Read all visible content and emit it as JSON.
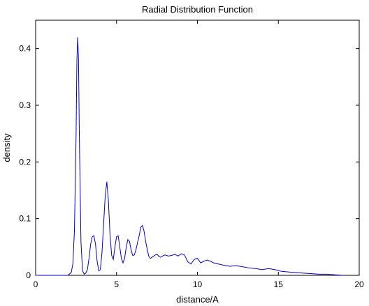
{
  "chart_data": {
    "type": "line",
    "title": "Radial Distribution Function",
    "xlabel": "distance/A",
    "ylabel": "density",
    "xlim": [
      0,
      20
    ],
    "ylim": [
      0,
      0.45
    ],
    "xticks": [
      0,
      5,
      10,
      15,
      20
    ],
    "xtick_labels": [
      "0",
      "5",
      "10",
      "15",
      "20"
    ],
    "yticks": [
      0,
      0.1,
      0.2,
      0.3,
      0.4
    ],
    "ytick_labels": [
      "0",
      "0.1",
      "0.2",
      "0.3",
      "0.4"
    ],
    "grid": false,
    "line_color": "#0000cc",
    "series": [
      {
        "x": [
          0,
          2.0,
          2.2,
          2.3,
          2.4,
          2.5,
          2.55,
          2.6,
          2.65,
          2.7,
          2.8,
          2.9,
          3.0,
          3.1,
          3.2,
          3.3,
          3.4,
          3.5,
          3.6,
          3.7,
          3.8,
          3.9,
          4.0,
          4.1,
          4.2,
          4.3,
          4.4,
          4.5,
          4.6,
          4.7,
          4.8,
          4.9,
          5.0,
          5.1,
          5.2,
          5.3,
          5.4,
          5.5,
          5.6,
          5.7,
          5.8,
          5.9,
          6.0,
          6.1,
          6.2,
          6.3,
          6.4,
          6.5,
          6.6,
          6.7,
          6.8,
          6.9,
          7.0,
          7.1,
          7.2,
          7.3,
          7.4,
          7.5,
          7.6,
          7.7,
          7.8,
          7.9,
          8.0,
          8.2,
          8.4,
          8.6,
          8.8,
          9.0,
          9.2,
          9.4,
          9.6,
          9.8,
          10.0,
          10.2,
          10.4,
          10.6,
          10.8,
          11.0,
          11.3,
          11.6,
          12.0,
          12.4,
          12.8,
          13.2,
          13.6,
          14.0,
          14.4,
          14.8,
          15.2,
          15.6,
          16.0,
          16.5,
          17.0,
          17.5,
          18.0,
          18.5,
          19.0
        ],
        "y": [
          0,
          0,
          0.005,
          0.02,
          0.08,
          0.25,
          0.38,
          0.42,
          0.38,
          0.25,
          0.06,
          0.008,
          0.002,
          0.004,
          0.01,
          0.03,
          0.055,
          0.068,
          0.07,
          0.055,
          0.025,
          0.008,
          0.01,
          0.04,
          0.09,
          0.14,
          0.165,
          0.13,
          0.07,
          0.035,
          0.028,
          0.05,
          0.068,
          0.07,
          0.05,
          0.03,
          0.022,
          0.03,
          0.05,
          0.063,
          0.06,
          0.045,
          0.035,
          0.036,
          0.045,
          0.058,
          0.07,
          0.085,
          0.088,
          0.078,
          0.06,
          0.045,
          0.033,
          0.03,
          0.032,
          0.034,
          0.036,
          0.037,
          0.034,
          0.032,
          0.033,
          0.035,
          0.036,
          0.034,
          0.035,
          0.037,
          0.034,
          0.038,
          0.036,
          0.024,
          0.02,
          0.028,
          0.03,
          0.022,
          0.025,
          0.027,
          0.025,
          0.022,
          0.02,
          0.018,
          0.016,
          0.017,
          0.015,
          0.013,
          0.012,
          0.01,
          0.012,
          0.01,
          0.007,
          0.006,
          0.005,
          0.004,
          0.003,
          0.002,
          0.002,
          0.001,
          0.0
        ]
      }
    ]
  }
}
